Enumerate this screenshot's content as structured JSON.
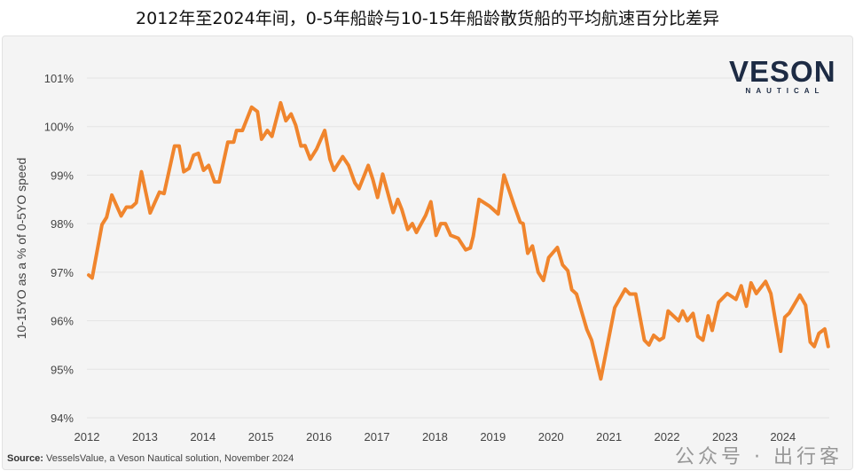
{
  "title": "2012年至2024年间，0-5年船龄与10-15年船龄散货船的平均航速百分比差异",
  "logo": {
    "main": "VESON",
    "sub": "NAUTICAL"
  },
  "source": {
    "label": "Source:",
    "text": " VesselsValue, a Veson Nautical solution, November 2024"
  },
  "watermark": "公众号 · 出行客",
  "colors": {
    "line": "#f0852d",
    "grid": "#e4e4e4",
    "axis_text": "#444444",
    "logo": "#1d2b44"
  },
  "chart_data": {
    "type": "line",
    "title": "2012年至2024年间，0-5年船龄与10-15年船龄散货船的平均航速百分比差异",
    "xlabel": "",
    "ylabel": "10-15YO as a % of 0-5YO speed",
    "xlim": [
      2012,
      2024.8
    ],
    "ylim": [
      94,
      101
    ],
    "grid": true,
    "x_ticks": [
      "2012",
      "2013",
      "2014",
      "2015",
      "2016",
      "2017",
      "2018",
      "2019",
      "2020",
      "2021",
      "2022",
      "2023",
      "2024"
    ],
    "y_ticks": [
      "94%",
      "95%",
      "96%",
      "97%",
      "98%",
      "99%",
      "100%",
      "101%"
    ],
    "series": [
      {
        "name": "10-15YO as a % of 0-5YO speed",
        "x": [
          2012.03,
          2012.09,
          2012.26,
          2012.34,
          2012.43,
          2012.59,
          2012.68,
          2012.77,
          2012.85,
          2012.94,
          2013.09,
          2013.25,
          2013.33,
          2013.51,
          2013.59,
          2013.67,
          2013.76,
          2013.84,
          2013.92,
          2014.01,
          2014.1,
          2014.2,
          2014.28,
          2014.43,
          2014.53,
          2014.58,
          2014.68,
          2014.84,
          2014.94,
          2015.01,
          2015.11,
          2015.19,
          2015.34,
          2015.43,
          2015.52,
          2015.6,
          2015.69,
          2015.76,
          2015.85,
          2015.96,
          2016.1,
          2016.19,
          2016.26,
          2016.41,
          2016.51,
          2016.62,
          2016.69,
          2016.85,
          2016.93,
          2017.01,
          2017.1,
          2017.28,
          2017.36,
          2017.43,
          2017.53,
          2017.61,
          2017.68,
          2017.84,
          2017.93,
          2018.02,
          2018.1,
          2018.18,
          2018.27,
          2018.4,
          2018.53,
          2018.61,
          2018.66,
          2018.76,
          2018.94,
          2019.09,
          2019.19,
          2019.37,
          2019.47,
          2019.52,
          2019.6,
          2019.68,
          2019.78,
          2019.87,
          2019.96,
          2020.11,
          2020.2,
          2020.29,
          2020.36,
          2020.44,
          2020.62,
          2020.7,
          2020.86,
          2021.1,
          2021.28,
          2021.36,
          2021.46,
          2021.61,
          2021.69,
          2021.77,
          2021.87,
          2021.94,
          2022.02,
          2022.2,
          2022.27,
          2022.35,
          2022.45,
          2022.53,
          2022.62,
          2022.71,
          2022.78,
          2022.89,
          2023.04,
          2023.19,
          2023.28,
          2023.37,
          2023.45,
          2023.54,
          2023.7,
          2023.79,
          2023.96,
          2024.03,
          2024.11,
          2024.29,
          2024.39,
          2024.47,
          2024.54,
          2024.62,
          2024.72,
          2024.78
        ],
        "values": [
          96.94,
          96.88,
          97.98,
          98.13,
          98.59,
          98.16,
          98.34,
          98.34,
          98.43,
          99.07,
          98.22,
          98.65,
          98.62,
          99.6,
          99.6,
          99.07,
          99.14,
          99.41,
          99.45,
          99.1,
          99.2,
          98.86,
          98.86,
          99.68,
          99.68,
          99.92,
          99.92,
          100.4,
          100.31,
          99.74,
          99.92,
          99.8,
          100.49,
          100.12,
          100.26,
          100.03,
          99.6,
          99.61,
          99.33,
          99.54,
          99.92,
          99.33,
          99.1,
          99.38,
          99.2,
          98.84,
          98.72,
          99.2,
          98.91,
          98.54,
          99.02,
          98.23,
          98.5,
          98.29,
          97.88,
          98.0,
          97.82,
          98.17,
          98.45,
          97.76,
          98.0,
          98.0,
          97.76,
          97.7,
          97.46,
          97.5,
          97.74,
          98.5,
          98.36,
          98.2,
          99.0,
          98.36,
          98.03,
          98.0,
          97.39,
          97.54,
          97.0,
          96.83,
          97.3,
          97.51,
          97.15,
          97.03,
          96.64,
          96.55,
          95.82,
          95.6,
          94.8,
          96.27,
          96.65,
          96.55,
          96.55,
          95.6,
          95.5,
          95.7,
          95.6,
          95.65,
          96.2,
          96.0,
          96.2,
          96.0,
          96.15,
          95.68,
          95.6,
          96.1,
          95.8,
          96.38,
          96.56,
          96.44,
          96.72,
          96.3,
          96.78,
          96.56,
          96.81,
          96.56,
          95.37,
          96.07,
          96.16,
          96.53,
          96.32,
          95.56,
          95.47,
          95.74,
          95.83,
          95.47
        ]
      }
    ]
  }
}
